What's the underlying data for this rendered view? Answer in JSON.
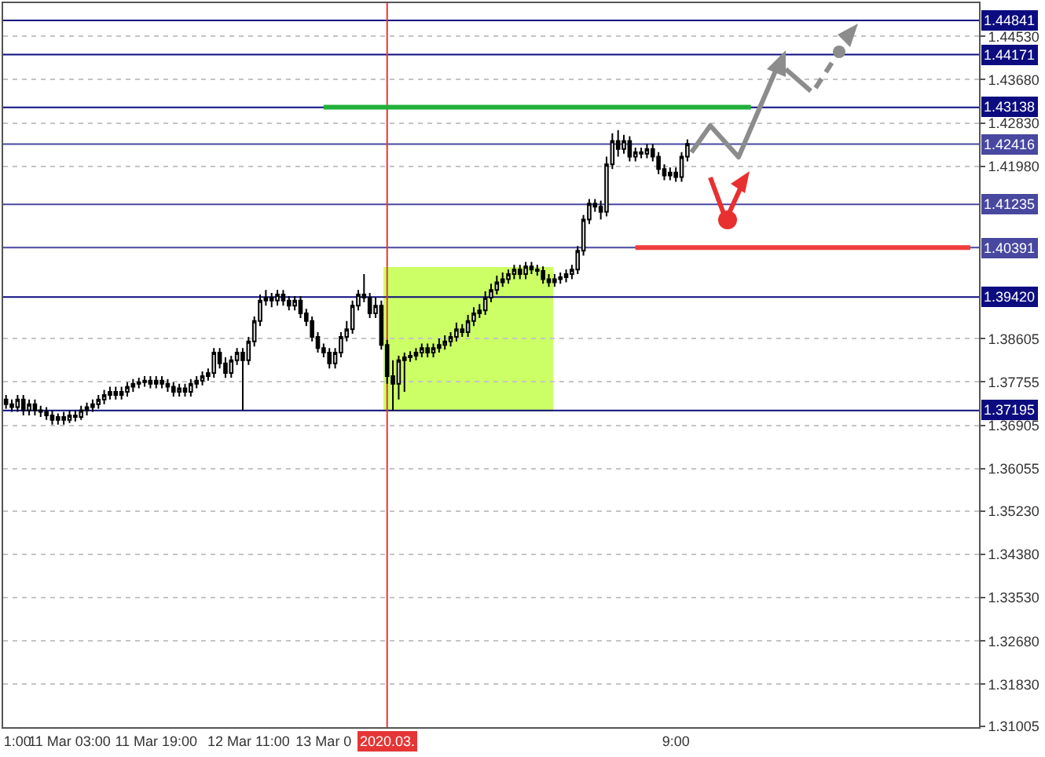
{
  "chart_data": {
    "type": "candlestick",
    "categories": [
      null,
      null,
      "1:00",
      null,
      null,
      null,
      null,
      null,
      null,
      null,
      null,
      "11 Mar 03:00",
      null,
      null,
      null,
      null,
      null,
      null,
      null,
      null,
      null,
      null,
      null,
      null,
      null,
      null,
      "11 Mar 19:00",
      null,
      null,
      null,
      null,
      null,
      null,
      null,
      null,
      null,
      null,
      null,
      null,
      null,
      null,
      null,
      "12 Mar 11:00",
      null,
      null,
      null,
      null,
      null,
      null,
      null,
      null,
      null,
      null,
      null,
      null,
      "13 Mar 0",
      null,
      null,
      null,
      null,
      null,
      null,
      null,
      null,
      null,
      null,
      "2020.03.",
      null,
      null,
      null,
      null,
      null,
      null,
      null,
      null,
      null,
      null,
      null,
      null,
      null,
      null,
      null,
      null,
      null,
      null,
      null,
      null,
      null,
      null,
      null,
      null,
      null,
      null,
      null,
      null,
      null,
      null,
      null,
      null,
      null,
      null,
      null,
      null,
      null,
      null,
      null,
      null,
      null,
      null,
      null,
      null,
      null,
      null,
      null,
      null,
      null,
      "9:00",
      null,
      null,
      null,
      null,
      null,
      null,
      null,
      null,
      null,
      null,
      null,
      null,
      null,
      null,
      null,
      null,
      null,
      null,
      null,
      null,
      null,
      null,
      null,
      null,
      null,
      null,
      null,
      null,
      null,
      null,
      null,
      null,
      null,
      null,
      null,
      null,
      null,
      null,
      null,
      null,
      null,
      null,
      null,
      null,
      null,
      null,
      null,
      null,
      null,
      null,
      null,
      null
    ],
    "ohlc": [
      [
        1.3741,
        1.375,
        1.3723,
        1.3732
      ],
      [
        1.3732,
        1.3741,
        1.3717,
        1.3726
      ],
      [
        1.3726,
        1.375,
        1.3717,
        1.3741
      ],
      [
        1.3741,
        1.375,
        1.371,
        1.372
      ],
      [
        1.372,
        1.3741,
        1.371,
        1.3732
      ],
      [
        1.3732,
        1.3741,
        1.371,
        1.372
      ],
      [
        1.372,
        1.3729,
        1.3707,
        1.3717
      ],
      [
        1.3717,
        1.3726,
        1.3701,
        1.371
      ],
      [
        1.371,
        1.372,
        1.3692,
        1.3701
      ],
      [
        1.3701,
        1.3714,
        1.3692,
        1.3707
      ],
      [
        1.3707,
        1.3717,
        1.3692,
        1.3701
      ],
      [
        1.3701,
        1.372,
        1.3695,
        1.371
      ],
      [
        1.371,
        1.372,
        1.3698,
        1.3707
      ],
      [
        1.3707,
        1.3729,
        1.3701,
        1.372
      ],
      [
        1.372,
        1.3735,
        1.371,
        1.3726
      ],
      [
        1.3726,
        1.3741,
        1.3717,
        1.3732
      ],
      [
        1.3732,
        1.375,
        1.3723,
        1.3741
      ],
      [
        1.3741,
        1.376,
        1.3732,
        1.375
      ],
      [
        1.375,
        1.3766,
        1.3741,
        1.3756
      ],
      [
        1.3756,
        1.3766,
        1.3741,
        1.375
      ],
      [
        1.375,
        1.3766,
        1.3741,
        1.3756
      ],
      [
        1.3756,
        1.3775,
        1.3747,
        1.3766
      ],
      [
        1.3766,
        1.3781,
        1.3756,
        1.3772
      ],
      [
        1.3772,
        1.3784,
        1.3763,
        1.3775
      ],
      [
        1.3775,
        1.3787,
        1.3766,
        1.3778
      ],
      [
        1.3778,
        1.3787,
        1.3763,
        1.3772
      ],
      [
        1.3772,
        1.3787,
        1.3763,
        1.3778
      ],
      [
        1.3778,
        1.3787,
        1.3763,
        1.3772
      ],
      [
        1.3772,
        1.3781,
        1.3756,
        1.3766
      ],
      [
        1.3766,
        1.3775,
        1.3747,
        1.3756
      ],
      [
        1.3756,
        1.3772,
        1.3747,
        1.3763
      ],
      [
        1.3763,
        1.3772,
        1.3747,
        1.3756
      ],
      [
        1.3756,
        1.3781,
        1.3747,
        1.3772
      ],
      [
        1.3772,
        1.3787,
        1.3763,
        1.3778
      ],
      [
        1.3778,
        1.3796,
        1.3769,
        1.3787
      ],
      [
        1.3787,
        1.3802,
        1.3778,
        1.3793
      ],
      [
        1.3793,
        1.3842,
        1.3784,
        1.3833
      ],
      [
        1.3833,
        1.3842,
        1.3802,
        1.3812
      ],
      [
        1.3812,
        1.3824,
        1.3784,
        1.3793
      ],
      [
        1.3793,
        1.3827,
        1.3784,
        1.3818
      ],
      [
        1.3818,
        1.3842,
        1.3809,
        1.3833
      ],
      [
        1.3833,
        1.3842,
        1.372,
        1.3818
      ],
      [
        1.3818,
        1.3864,
        1.3809,
        1.3855
      ],
      [
        1.3855,
        1.3904,
        1.3845,
        1.3895
      ],
      [
        1.3895,
        1.3947,
        1.3885,
        1.3935
      ],
      [
        1.3935,
        1.3956,
        1.3925,
        1.3941
      ],
      [
        1.3941,
        1.395,
        1.3922,
        1.3935
      ],
      [
        1.3935,
        1.3956,
        1.3925,
        1.3947
      ],
      [
        1.3947,
        1.3956,
        1.3925,
        1.3935
      ],
      [
        1.3935,
        1.3944,
        1.3916,
        1.3925
      ],
      [
        1.3925,
        1.3944,
        1.3916,
        1.3935
      ],
      [
        1.3935,
        1.3944,
        1.3901,
        1.391
      ],
      [
        1.391,
        1.3919,
        1.3885,
        1.3895
      ],
      [
        1.3895,
        1.3904,
        1.3855,
        1.3864
      ],
      [
        1.3864,
        1.3873,
        1.3833,
        1.3842
      ],
      [
        1.3842,
        1.3851,
        1.3824,
        1.3833
      ],
      [
        1.3833,
        1.3842,
        1.3802,
        1.3812
      ],
      [
        1.3812,
        1.3842,
        1.3802,
        1.3833
      ],
      [
        1.3833,
        1.3873,
        1.3824,
        1.3864
      ],
      [
        1.3864,
        1.3895,
        1.3855,
        1.3879
      ],
      [
        1.3879,
        1.3935,
        1.387,
        1.3925
      ],
      [
        1.3925,
        1.3956,
        1.3916,
        1.3947
      ],
      [
        1.3947,
        1.3987,
        1.3932,
        1.3941
      ],
      [
        1.3941,
        1.395,
        1.3901,
        1.391
      ],
      [
        1.391,
        1.3941,
        1.3901,
        1.3925
      ],
      [
        1.3925,
        1.3935,
        1.3839,
        1.3848
      ],
      [
        1.3848,
        1.3858,
        1.3772,
        1.3787
      ],
      [
        1.3787,
        1.3818,
        1.372,
        1.3772
      ],
      [
        1.3772,
        1.3827,
        1.3741,
        1.3818
      ],
      [
        1.3818,
        1.3833,
        1.3756,
        1.3824
      ],
      [
        1.3824,
        1.3836,
        1.3815,
        1.3827
      ],
      [
        1.3827,
        1.3842,
        1.3818,
        1.3833
      ],
      [
        1.3833,
        1.3851,
        1.3824,
        1.3842
      ],
      [
        1.3842,
        1.3851,
        1.3824,
        1.3833
      ],
      [
        1.3833,
        1.3851,
        1.3824,
        1.3842
      ],
      [
        1.3842,
        1.3861,
        1.3833,
        1.3848
      ],
      [
        1.3848,
        1.3867,
        1.3839,
        1.3855
      ],
      [
        1.3855,
        1.3873,
        1.3845,
        1.3864
      ],
      [
        1.3864,
        1.3892,
        1.3855,
        1.3879
      ],
      [
        1.3879,
        1.3889,
        1.3864,
        1.3873
      ],
      [
        1.3873,
        1.3907,
        1.3864,
        1.3895
      ],
      [
        1.3895,
        1.3922,
        1.3885,
        1.391
      ],
      [
        1.391,
        1.3928,
        1.3901,
        1.3916
      ],
      [
        1.3916,
        1.3953,
        1.3907,
        1.3941
      ],
      [
        1.3941,
        1.3968,
        1.3932,
        1.3956
      ],
      [
        1.3956,
        1.3984,
        1.3947,
        1.3971
      ],
      [
        1.3971,
        1.399,
        1.3962,
        1.3977
      ],
      [
        1.3977,
        1.3996,
        1.3968,
        1.3987
      ],
      [
        1.3987,
        1.4005,
        1.3977,
        1.3996
      ],
      [
        1.3996,
        1.4005,
        1.3977,
        1.3987
      ],
      [
        1.3987,
        1.4011,
        1.3977,
        1.4002
      ],
      [
        1.4002,
        1.4011,
        1.3987,
        1.3996
      ],
      [
        1.3996,
        1.4005,
        1.3984,
        1.3993
      ],
      [
        1.3993,
        1.4002,
        1.3968,
        1.3977
      ],
      [
        1.3977,
        1.3987,
        1.3962,
        1.3971
      ],
      [
        1.3971,
        1.3987,
        1.3962,
        1.3977
      ],
      [
        1.3977,
        1.399,
        1.3968,
        1.3981
      ],
      [
        1.3981,
        1.3996,
        1.3971,
        1.3987
      ],
      [
        1.3987,
        1.4005,
        1.3977,
        1.3996
      ],
      [
        1.3996,
        1.4042,
        1.3987,
        1.4033
      ],
      [
        1.4033,
        1.4103,
        1.4023,
        1.4094
      ],
      [
        1.4094,
        1.4134,
        1.4085,
        1.4125
      ],
      [
        1.4125,
        1.4134,
        1.4109,
        1.4119
      ],
      [
        1.4119,
        1.4131,
        1.4094,
        1.4109
      ],
      [
        1.4109,
        1.4217,
        1.41,
        1.4202
      ],
      [
        1.4202,
        1.4263,
        1.4193,
        1.4248
      ],
      [
        1.4248,
        1.4269,
        1.4217,
        1.4232
      ],
      [
        1.4232,
        1.426,
        1.4223,
        1.4248
      ],
      [
        1.4248,
        1.4257,
        1.4208,
        1.4217
      ],
      [
        1.4217,
        1.4235,
        1.4208,
        1.4226
      ],
      [
        1.4226,
        1.4235,
        1.4214,
        1.4223
      ],
      [
        1.4223,
        1.4242,
        1.4214,
        1.4232
      ],
      [
        1.4232,
        1.4242,
        1.4208,
        1.4217
      ],
      [
        1.4217,
        1.4226,
        1.4183,
        1.4193
      ],
      [
        1.4193,
        1.4202,
        1.4171,
        1.418
      ],
      [
        1.418,
        1.4196,
        1.4171,
        1.4186
      ],
      [
        1.4186,
        1.4196,
        1.4168,
        1.4177
      ],
      [
        1.4177,
        1.4226,
        1.4168,
        1.4217
      ],
      [
        1.4217,
        1.4251,
        1.4208,
        1.4242
      ],
      null,
      null,
      null,
      null,
      null,
      null,
      null,
      null,
      null,
      null,
      null,
      null,
      null,
      null,
      null,
      null,
      null,
      null,
      null,
      null,
      null,
      null,
      null,
      null,
      null,
      null,
      null,
      null,
      null,
      null,
      null,
      null,
      null,
      null,
      null,
      null,
      null,
      null,
      null,
      null,
      null,
      null,
      null,
      null,
      null,
      null,
      null,
      null,
      null,
      null
    ],
    "series": [
      {
        "type": "line",
        "values": [
          null,
          null,
          null,
          null,
          null,
          null,
          null,
          null,
          null,
          null,
          null,
          null,
          null,
          null,
          null,
          null,
          null,
          null,
          null,
          null,
          null,
          null,
          null,
          null,
          null,
          null,
          null,
          null,
          null,
          null,
          null,
          null,
          null,
          null,
          null,
          null,
          null,
          null,
          null,
          null,
          null,
          null,
          null,
          null,
          null,
          null,
          null,
          null,
          null,
          null,
          null,
          null,
          null,
          null,
          null,
          1.4314,
          null,
          null,
          null,
          null,
          null,
          null,
          null,
          null,
          null,
          null,
          null,
          null,
          null,
          null,
          null,
          null,
          null,
          null,
          null,
          null,
          null,
          null,
          null,
          null,
          null,
          null,
          null,
          null,
          null,
          null,
          null,
          null,
          null,
          null,
          null,
          null,
          null,
          null,
          null,
          null,
          null,
          null,
          null,
          null,
          null,
          null,
          null,
          null,
          null,
          null,
          null,
          null,
          null,
          null,
          null,
          null,
          null,
          null,
          null,
          null,
          null,
          null,
          null,
          null,
          null,
          null,
          null,
          null,
          null,
          null,
          null,
          null,
          null,
          1.4314,
          null,
          null,
          null,
          null,
          null,
          null,
          null,
          null,
          null,
          null,
          null,
          null,
          null,
          null,
          null,
          null,
          null,
          null,
          null,
          null,
          null,
          null,
          null,
          null,
          null,
          null,
          null,
          null,
          null,
          null,
          null,
          null,
          null,
          null,
          null,
          null,
          null,
          null,
          null
        ],
        "color": "#22b03a"
      },
      {
        "type": "line",
        "values": [
          null,
          null,
          null,
          null,
          null,
          null,
          null,
          null,
          null,
          null,
          null,
          null,
          null,
          null,
          null,
          null,
          null,
          null,
          null,
          null,
          null,
          null,
          null,
          null,
          null,
          null,
          null,
          null,
          null,
          null,
          null,
          null,
          null,
          null,
          null,
          null,
          null,
          null,
          null,
          null,
          null,
          null,
          null,
          null,
          null,
          null,
          null,
          null,
          null,
          null,
          null,
          null,
          null,
          null,
          null,
          null,
          null,
          null,
          null,
          null,
          null,
          null,
          null,
          null,
          null,
          null,
          null,
          null,
          null,
          null,
          null,
          null,
          null,
          null,
          null,
          null,
          null,
          null,
          null,
          null,
          null,
          null,
          null,
          null,
          null,
          null,
          null,
          null,
          null,
          null,
          null,
          null,
          null,
          null,
          null,
          null,
          null,
          null,
          null,
          null,
          null,
          null,
          null,
          null,
          null,
          null,
          null,
          null,
          null,
          1.4039,
          null,
          null,
          null,
          null,
          null,
          null,
          null,
          null,
          null,
          null,
          null,
          null,
          null,
          null,
          null,
          null,
          null,
          null,
          null,
          null,
          null,
          null,
          null,
          null,
          null,
          null,
          null,
          null,
          null,
          null,
          null,
          null,
          null,
          null,
          null,
          null,
          null,
          null,
          null,
          null,
          null,
          null,
          null,
          null,
          null,
          null,
          null,
          null,
          null,
          null,
          null,
          null,
          null,
          null,
          null,
          null,
          null,
          1.4039,
          null
        ],
        "color": "#f03c3c"
      }
    ],
    "ylim": [
      1.3099,
      1.4518
    ],
    "yticks": [
      {
        "value": 1.4453,
        "label": "1.44530"
      },
      {
        "value": 1.4368,
        "label": "1.43680"
      },
      {
        "value": 1.4283,
        "label": "1.42830"
      },
      {
        "value": 1.4198,
        "label": "1.41980"
      },
      {
        "value": 1.38605,
        "label": "1.38605"
      },
      {
        "value": 1.37755,
        "label": "1.37755"
      },
      {
        "value": 1.36905,
        "label": "1.36905"
      },
      {
        "value": 1.36055,
        "label": "1.36055"
      },
      {
        "value": 1.3523,
        "label": "1.35230"
      },
      {
        "value": 1.3438,
        "label": "1.34380"
      },
      {
        "value": 1.3353,
        "label": "1.33530"
      },
      {
        "value": 1.3268,
        "label": "1.32680"
      },
      {
        "value": 1.3183,
        "label": "1.31830"
      },
      {
        "value": 1.31005,
        "label": "1.31005"
      }
    ],
    "grid": "y",
    "ref_lines": [
      {
        "axis": "y",
        "value": 1.44841,
        "label": "1.44841",
        "color": "#0c0c80"
      },
      {
        "axis": "y",
        "value": 1.44171,
        "label": "1.44171",
        "color": "#0c0c80"
      },
      {
        "axis": "y",
        "value": 1.43138,
        "label": "1.43138",
        "color": "#0c0c80"
      },
      {
        "axis": "y",
        "value": 1.42416,
        "label": "1.42416",
        "color": "#4848a0"
      },
      {
        "axis": "y",
        "value": 1.41235,
        "label": "1.41235",
        "color": "#4848a0"
      },
      {
        "axis": "y",
        "value": 1.40391,
        "label": "1.40391",
        "color": "#4848a0"
      },
      {
        "axis": "y",
        "value": 1.3942,
        "label": "1.39420",
        "color": "#0c0c80"
      },
      {
        "axis": "y",
        "value": 1.37195,
        "label": "1.37195",
        "color": "#0c0c80"
      },
      {
        "axis": "x",
        "value": "2020.03.",
        "color": "#e53535"
      }
    ]
  }
}
